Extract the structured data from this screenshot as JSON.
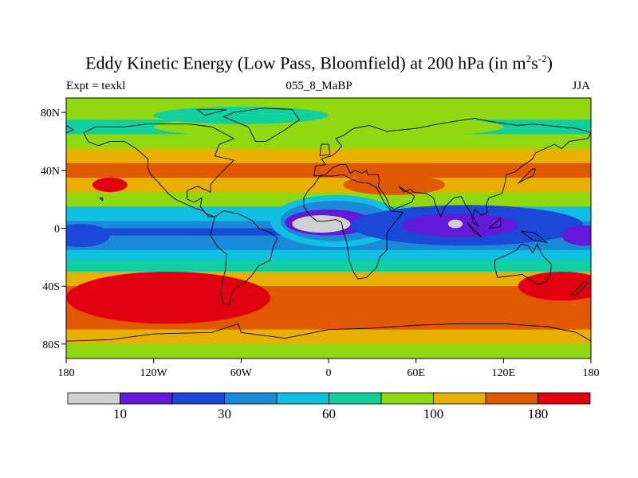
{
  "chart_data": {
    "type": "heatmap",
    "title": "Eddy Kinetic Energy (Low Pass, Bloomfield) at 200 hPa (in m",
    "title_unit_sup1": "2",
    "title_unit_mid": "s",
    "title_unit_sup2": "-2",
    "title_close": ")",
    "subtitle_left": "Expt = texkl",
    "subtitle_center": "055_8_MaBP",
    "subtitle_right": "JJA",
    "x_range": [
      -180,
      180
    ],
    "y_range": [
      -90,
      90
    ],
    "x_ticks": [
      {
        "value": -180,
        "label": "180"
      },
      {
        "value": -120,
        "label": "120W"
      },
      {
        "value": -60,
        "label": "60W"
      },
      {
        "value": 0,
        "label": "0"
      },
      {
        "value": 60,
        "label": "60E"
      },
      {
        "value": 120,
        "label": "120E"
      },
      {
        "value": 180,
        "label": "180"
      }
    ],
    "y_ticks": [
      {
        "value": 80,
        "label": "80N"
      },
      {
        "value": 40,
        "label": "40N"
      },
      {
        "value": 0,
        "label": "0"
      },
      {
        "value": -40,
        "label": "40S"
      },
      {
        "value": -80,
        "label": "80S"
      }
    ],
    "colorbar": {
      "colors": [
        "#d0d0d0",
        "#6418d8",
        "#1c48d8",
        "#1a8ad8",
        "#10c0e0",
        "#10d0a0",
        "#90d810",
        "#e8b000",
        "#e05800",
        "#e00010"
      ],
      "labels": [
        {
          "index": 1,
          "label": "10"
        },
        {
          "index": 3,
          "label": "30"
        },
        {
          "index": 5,
          "label": "60"
        },
        {
          "index": 7,
          "label": "100"
        },
        {
          "index": 9,
          "label": "180"
        }
      ]
    },
    "bands": [
      {
        "lat": 90,
        "level": 6
      },
      {
        "lat": 85,
        "level": 6
      },
      {
        "lat": 75,
        "level": 5
      },
      {
        "lat": 65,
        "level": 6
      },
      {
        "lat": 55,
        "level": 7
      },
      {
        "lat": 45,
        "level": 8
      },
      {
        "lat": 35,
        "level": 7
      },
      {
        "lat": 25,
        "level": 6
      },
      {
        "lat": 15,
        "level": 4
      },
      {
        "lat": 5,
        "level": 3
      },
      {
        "lat": 0,
        "level": 2
      },
      {
        "lat": -5,
        "level": 3
      },
      {
        "lat": -15,
        "level": 4
      },
      {
        "lat": -22,
        "level": 5
      },
      {
        "lat": -30,
        "level": 7
      },
      {
        "lat": -40,
        "level": 8
      },
      {
        "lat": -50,
        "level": 8
      },
      {
        "lat": -60,
        "level": 8
      },
      {
        "lat": -70,
        "level": 7
      },
      {
        "lat": -80,
        "level": 6
      },
      {
        "lat": -90,
        "level": 5
      }
    ],
    "blobs": [
      {
        "lon": -110,
        "lat": -48,
        "rx": 70,
        "ry": 18,
        "level": 9
      },
      {
        "lon": 160,
        "lat": -40,
        "rx": 30,
        "ry": 10,
        "level": 9
      },
      {
        "lon": -150,
        "lat": 30,
        "rx": 12,
        "ry": 5,
        "level": 9
      },
      {
        "lon": 45,
        "lat": 30,
        "rx": 35,
        "ry": 7,
        "level": 8
      },
      {
        "lon": 5,
        "lat": 5,
        "rx": 45,
        "ry": 18,
        "level": 4
      },
      {
        "lon": 5,
        "lat": 5,
        "rx": 38,
        "ry": 14,
        "level": 3
      },
      {
        "lon": 0,
        "lat": 4,
        "rx": 30,
        "ry": 9,
        "level": 1
      },
      {
        "lon": -5,
        "lat": 3,
        "rx": 20,
        "ry": 6,
        "level": 0
      },
      {
        "lon": 95,
        "lat": 2,
        "rx": 80,
        "ry": 14,
        "level": 2
      },
      {
        "lon": 90,
        "lat": 2,
        "rx": 40,
        "ry": 8,
        "level": 1
      },
      {
        "lon": 87,
        "lat": 3,
        "rx": 5,
        "ry": 3,
        "level": 0
      },
      {
        "lon": -170,
        "lat": -5,
        "rx": 20,
        "ry": 8,
        "level": 2
      },
      {
        "lon": 175,
        "lat": -5,
        "rx": 15,
        "ry": 7,
        "level": 1
      },
      {
        "lon": 0,
        "lat": 70,
        "rx": 120,
        "ry": 8,
        "level": 6
      },
      {
        "lon": -60,
        "lat": 78,
        "rx": 60,
        "ry": 6,
        "level": 5
      }
    ],
    "coastlines": [
      [
        [
          -168,
          66
        ],
        [
          -160,
          70
        ],
        [
          -140,
          70
        ],
        [
          -125,
          72
        ],
        [
          -95,
          72
        ],
        [
          -80,
          70
        ],
        [
          -65,
          62
        ],
        [
          -75,
          58
        ],
        [
          -78,
          50
        ],
        [
          -65,
          47
        ],
        [
          -70,
          42
        ],
        [
          -77,
          35
        ],
        [
          -81,
          30
        ],
        [
          -81,
          25
        ],
        [
          -90,
          29
        ],
        [
          -97,
          26
        ],
        [
          -97,
          20
        ],
        [
          -92,
          18
        ],
        [
          -87,
          21
        ],
        [
          -88,
          15
        ],
        [
          -84,
          10
        ],
        [
          -78,
          8
        ],
        [
          -82,
          8
        ],
        [
          -86,
          12
        ],
        [
          -92,
          14
        ],
        [
          -105,
          20
        ],
        [
          -110,
          24
        ],
        [
          -117,
          32
        ],
        [
          -122,
          37
        ],
        [
          -124,
          42
        ],
        [
          -124,
          48
        ],
        [
          -132,
          55
        ],
        [
          -140,
          60
        ],
        [
          -150,
          60
        ],
        [
          -158,
          57
        ],
        [
          -165,
          60
        ],
        [
          -168,
          66
        ]
      ],
      [
        [
          -78,
          8
        ],
        [
          -72,
          12
        ],
        [
          -62,
          10
        ],
        [
          -52,
          5
        ],
        [
          -48,
          0
        ],
        [
          -40,
          -3
        ],
        [
          -35,
          -7
        ],
        [
          -38,
          -13
        ],
        [
          -40,
          -22
        ],
        [
          -48,
          -26
        ],
        [
          -53,
          -33
        ],
        [
          -58,
          -38
        ],
        [
          -65,
          -42
        ],
        [
          -67,
          -47
        ],
        [
          -68,
          -53
        ],
        [
          -72,
          -52
        ],
        [
          -74,
          -45
        ],
        [
          -73,
          -37
        ],
        [
          -71,
          -30
        ],
        [
          -70,
          -18
        ],
        [
          -76,
          -13
        ],
        [
          -81,
          -5
        ],
        [
          -80,
          0
        ],
        [
          -78,
          8
        ]
      ],
      [
        [
          -50,
          60
        ],
        [
          -43,
          60
        ],
        [
          -30,
          68
        ],
        [
          -20,
          75
        ],
        [
          -25,
          82
        ],
        [
          -45,
          83
        ],
        [
          -65,
          80
        ],
        [
          -72,
          77
        ],
        [
          -55,
          70
        ],
        [
          -50,
          60
        ]
      ],
      [
        [
          -17,
          21
        ],
        [
          -17,
          15
        ],
        [
          -13,
          9
        ],
        [
          -8,
          5
        ],
        [
          -2,
          5
        ],
        [
          5,
          6
        ],
        [
          9,
          4
        ],
        [
          10,
          -2
        ],
        [
          12,
          -8
        ],
        [
          13,
          -13
        ],
        [
          14,
          -22
        ],
        [
          17,
          -30
        ],
        [
          20,
          -35
        ],
        [
          26,
          -34
        ],
        [
          33,
          -27
        ],
        [
          35,
          -20
        ],
        [
          40,
          -15
        ],
        [
          40,
          -8
        ],
        [
          40,
          -3
        ],
        [
          44,
          2
        ],
        [
          51,
          11
        ],
        [
          43,
          12
        ],
        [
          38,
          18
        ],
        [
          33,
          28
        ],
        [
          28,
          31
        ],
        [
          20,
          32
        ],
        [
          10,
          37
        ],
        [
          2,
          36
        ],
        [
          -6,
          36
        ],
        [
          -10,
          30
        ],
        [
          -14,
          26
        ],
        [
          -17,
          21
        ]
      ],
      [
        [
          -10,
          36
        ],
        [
          -9,
          43
        ],
        [
          -2,
          44
        ],
        [
          -5,
          48
        ],
        [
          2,
          50
        ],
        [
          6,
          53
        ],
        [
          9,
          57
        ],
        [
          5,
          62
        ],
        [
          10,
          64
        ],
        [
          17,
          69
        ],
        [
          28,
          71
        ],
        [
          40,
          67
        ],
        [
          60,
          69
        ],
        [
          75,
          72
        ],
        [
          100,
          76
        ],
        [
          110,
          74
        ],
        [
          130,
          71
        ],
        [
          140,
          72
        ],
        [
          160,
          70
        ],
        [
          170,
          69
        ],
        [
          180,
          66
        ],
        [
          178,
          62
        ],
        [
          165,
          60
        ],
        [
          160,
          55
        ],
        [
          155,
          58
        ],
        [
          142,
          52
        ],
        [
          140,
          48
        ],
        [
          133,
          43
        ],
        [
          128,
          39
        ],
        [
          122,
          37
        ],
        [
          121,
          31
        ],
        [
          119,
          24
        ],
        [
          110,
          21
        ],
        [
          108,
          16
        ],
        [
          109,
          11
        ],
        [
          105,
          9
        ],
        [
          100,
          13
        ],
        [
          99,
          8
        ],
        [
          103,
          1
        ],
        [
          99,
          4
        ],
        [
          98,
          10
        ],
        [
          94,
          16
        ],
        [
          91,
          22
        ],
        [
          86,
          21
        ],
        [
          80,
          15
        ],
        [
          77,
          8
        ],
        [
          73,
          17
        ],
        [
          72,
          21
        ],
        [
          67,
          24
        ],
        [
          58,
          25
        ],
        [
          56,
          27
        ],
        [
          52,
          25
        ],
        [
          48,
          29
        ],
        [
          56,
          24
        ],
        [
          59,
          22
        ],
        [
          57,
          18
        ],
        [
          52,
          16
        ],
        [
          45,
          13
        ],
        [
          42,
          15
        ],
        [
          39,
          22
        ],
        [
          34,
          29
        ],
        [
          35,
          33
        ],
        [
          34,
          37
        ],
        [
          27,
          37
        ],
        [
          26,
          40
        ],
        [
          23,
          38
        ],
        [
          18,
          40
        ],
        [
          15,
          38
        ],
        [
          12,
          44
        ],
        [
          8,
          44
        ],
        [
          3,
          42
        ],
        [
          -2,
          37
        ],
        [
          -10,
          36
        ]
      ],
      [
        [
          114,
          -22
        ],
        [
          121,
          -19
        ],
        [
          129,
          -15
        ],
        [
          132,
          -11
        ],
        [
          137,
          -12
        ],
        [
          140,
          -17
        ],
        [
          143,
          -11
        ],
        [
          147,
          -19
        ],
        [
          153,
          -25
        ],
        [
          152,
          -33
        ],
        [
          149,
          -37
        ],
        [
          143,
          -39
        ],
        [
          138,
          -35
        ],
        [
          133,
          -32
        ],
        [
          124,
          -33
        ],
        [
          116,
          -34
        ],
        [
          114,
          -27
        ],
        [
          114,
          -22
        ]
      ],
      [
        [
          166,
          -46
        ],
        [
          172,
          -41
        ],
        [
          175,
          -37
        ],
        [
          178,
          -38
        ],
        [
          174,
          -42
        ],
        [
          170,
          -46
        ],
        [
          166,
          -46
        ]
      ],
      [
        [
          -6,
          50
        ],
        [
          1,
          51
        ],
        [
          0,
          58
        ],
        [
          -5,
          58
        ],
        [
          -6,
          50
        ]
      ],
      [
        [
          130,
          31
        ],
        [
          135,
          34
        ],
        [
          140,
          36
        ],
        [
          142,
          41
        ],
        [
          140,
          41
        ],
        [
          135,
          36
        ],
        [
          130,
          31
        ]
      ],
      [
        [
          -180,
          -78
        ],
        [
          -150,
          -77
        ],
        [
          -120,
          -73
        ],
        [
          -80,
          -72
        ],
        [
          -62,
          -66
        ],
        [
          -60,
          -72
        ],
        [
          -30,
          -76
        ],
        [
          0,
          -70
        ],
        [
          30,
          -69
        ],
        [
          60,
          -67
        ],
        [
          90,
          -66
        ],
        [
          120,
          -66
        ],
        [
          150,
          -68
        ],
        [
          170,
          -72
        ],
        [
          180,
          -78
        ]
      ],
      [
        [
          -180,
          71
        ],
        [
          -175,
          68
        ],
        [
          -180,
          66
        ]
      ],
      [
        [
          -155,
          19
        ],
        [
          -155,
          21
        ],
        [
          -157,
          21
        ],
        [
          -155,
          19
        ]
      ],
      [
        [
          -85,
          78
        ],
        [
          -70,
          82
        ],
        [
          -90,
          82
        ],
        [
          -85,
          78
        ]
      ],
      [
        [
          95,
          4
        ],
        [
          105,
          -6
        ],
        [
          100,
          -3
        ],
        [
          95,
          4
        ]
      ],
      [
        [
          110,
          0
        ],
        [
          118,
          7
        ],
        [
          118,
          1
        ],
        [
          110,
          0
        ]
      ],
      [
        [
          132,
          -2
        ],
        [
          141,
          -3
        ],
        [
          150,
          -10
        ],
        [
          140,
          -8
        ],
        [
          132,
          -2
        ]
      ]
    ]
  }
}
